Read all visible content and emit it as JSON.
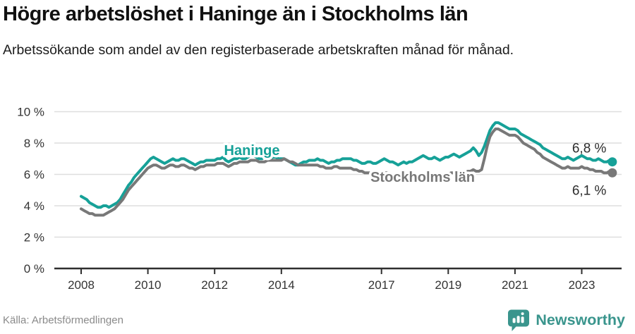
{
  "header": {
    "title": "Högre arbetslöshet i Haninge än i Stockholms län",
    "subtitle": "Arbetssökande som andel av den registerbaserade arbetskraften månad för månad."
  },
  "footer": {
    "source": "Källa: Arbetsförmedlingen",
    "brand": "Newsworthy",
    "brand_icon": "bar-chart-speech-bubble-icon"
  },
  "colors": {
    "haninge_line": "#16a198",
    "stockholm_line": "#787878",
    "grid": "#dedede",
    "axis": "#2f2f2f",
    "tick_text": "#333333",
    "end_label_text": "#2d2d2d",
    "brand_teal": "#3a958d",
    "source_text": "#8a8a8a"
  },
  "chart_data": {
    "type": "line",
    "title": "Högre arbetslöshet i Haninge än i Stockholms län",
    "subtitle": "Arbetssökande som andel av den registerbaserade arbetskraften månad för månad.",
    "unit": "%",
    "x_start_year": 2008,
    "points_per_year": 12,
    "ylim": [
      0,
      10
    ],
    "grid": true,
    "y_ticks": [
      {
        "v": 0,
        "label": "0 %"
      },
      {
        "v": 2,
        "label": "2 %"
      },
      {
        "v": 4,
        "label": "4 %"
      },
      {
        "v": 6,
        "label": "6 %"
      },
      {
        "v": 8,
        "label": "8 %"
      },
      {
        "v": 10,
        "label": "10 %"
      }
    ],
    "x_ticks": [
      {
        "year": 2008,
        "label": "2008"
      },
      {
        "year": 2010,
        "label": "2010"
      },
      {
        "year": 2012,
        "label": "2012"
      },
      {
        "year": 2014,
        "label": "2014"
      },
      {
        "year": 2017,
        "label": "2017"
      },
      {
        "year": 2019,
        "label": "2019"
      },
      {
        "year": 2021,
        "label": "2021"
      },
      {
        "year": 2023,
        "label": "2023"
      }
    ],
    "series": [
      {
        "name": "Haninge",
        "color": "#16a198",
        "end_label": "6,8 %",
        "values": [
          4.6,
          4.5,
          4.4,
          4.2,
          4.1,
          4.0,
          3.9,
          3.9,
          4.0,
          4.0,
          3.9,
          4.0,
          4.1,
          4.2,
          4.4,
          4.7,
          5.0,
          5.3,
          5.5,
          5.8,
          6.0,
          6.2,
          6.4,
          6.6,
          6.8,
          7.0,
          7.1,
          7.0,
          6.9,
          6.8,
          6.7,
          6.8,
          6.9,
          7.0,
          6.9,
          6.9,
          7.0,
          7.0,
          6.9,
          6.8,
          6.7,
          6.6,
          6.7,
          6.8,
          6.8,
          6.9,
          6.9,
          6.9,
          6.9,
          7.0,
          7.0,
          7.1,
          6.9,
          6.8,
          6.9,
          7.0,
          7.0,
          7.1,
          7.0,
          7.0,
          7.1,
          7.2,
          7.2,
          7.1,
          7.0,
          7.0,
          7.1,
          7.1,
          7.0,
          7.1,
          7.1,
          7.0,
          7.0,
          7.0,
          6.9,
          6.8,
          6.7,
          6.6,
          6.6,
          6.7,
          6.8,
          6.8,
          6.9,
          6.9,
          6.9,
          7.0,
          6.9,
          6.9,
          6.8,
          6.7,
          6.8,
          6.8,
          6.9,
          6.9,
          7.0,
          7.0,
          7.0,
          7.0,
          6.9,
          6.9,
          6.8,
          6.7,
          6.7,
          6.8,
          6.8,
          6.7,
          6.7,
          6.8,
          6.9,
          7.0,
          6.9,
          6.8,
          6.8,
          6.7,
          6.6,
          6.7,
          6.8,
          6.7,
          6.8,
          6.8,
          6.9,
          7.0,
          7.1,
          7.2,
          7.1,
          7.0,
          7.0,
          7.1,
          7.0,
          6.9,
          7.0,
          7.1,
          7.1,
          7.2,
          7.3,
          7.2,
          7.1,
          7.2,
          7.3,
          7.4,
          7.5,
          7.7,
          7.5,
          7.2,
          7.4,
          7.8,
          8.3,
          8.8,
          9.1,
          9.3,
          9.3,
          9.2,
          9.1,
          9.0,
          8.9,
          8.9,
          8.9,
          8.8,
          8.6,
          8.5,
          8.4,
          8.3,
          8.2,
          8.1,
          8.0,
          7.9,
          7.7,
          7.6,
          7.5,
          7.4,
          7.3,
          7.2,
          7.1,
          7.0,
          7.0,
          7.1,
          7.0,
          6.9,
          7.0,
          7.1,
          7.2,
          7.1,
          7.0,
          7.0,
          6.9,
          6.9,
          7.0,
          6.9,
          6.8,
          6.8,
          6.9,
          6.8
        ]
      },
      {
        "name": "Stockholms län",
        "color": "#787878",
        "end_label": "6,1 %",
        "values": [
          3.8,
          3.7,
          3.6,
          3.5,
          3.5,
          3.4,
          3.4,
          3.4,
          3.4,
          3.5,
          3.6,
          3.7,
          3.8,
          4.0,
          4.2,
          4.4,
          4.7,
          5.0,
          5.2,
          5.4,
          5.6,
          5.8,
          6.0,
          6.2,
          6.4,
          6.5,
          6.6,
          6.6,
          6.5,
          6.4,
          6.4,
          6.5,
          6.6,
          6.6,
          6.5,
          6.5,
          6.6,
          6.6,
          6.5,
          6.4,
          6.4,
          6.3,
          6.4,
          6.5,
          6.5,
          6.6,
          6.6,
          6.6,
          6.6,
          6.7,
          6.7,
          6.7,
          6.6,
          6.5,
          6.6,
          6.7,
          6.7,
          6.8,
          6.8,
          6.8,
          6.8,
          6.9,
          6.9,
          6.9,
          6.8,
          6.8,
          6.8,
          6.9,
          6.9,
          6.9,
          6.9,
          6.9,
          6.9,
          7.0,
          6.9,
          6.8,
          6.8,
          6.7,
          6.6,
          6.6,
          6.6,
          6.6,
          6.6,
          6.6,
          6.6,
          6.6,
          6.5,
          6.5,
          6.4,
          6.4,
          6.4,
          6.5,
          6.5,
          6.4,
          6.4,
          6.4,
          6.4,
          6.4,
          6.3,
          6.3,
          6.2,
          6.2,
          6.1,
          6.1,
          6.1,
          6.0,
          6.0,
          6.0,
          6.1,
          6.1,
          6.1,
          6.0,
          6.0,
          5.9,
          5.9,
          6.0,
          6.0,
          6.0,
          6.0,
          6.0,
          6.0,
          6.0,
          6.0,
          5.9,
          5.9,
          5.8,
          5.8,
          5.9,
          5.9,
          5.9,
          5.9,
          6.0,
          6.0,
          6.1,
          6.1,
          6.1,
          6.0,
          6.1,
          6.1,
          6.2,
          6.2,
          6.3,
          6.2,
          6.2,
          6.3,
          7.0,
          7.8,
          8.4,
          8.7,
          8.9,
          8.9,
          8.8,
          8.7,
          8.6,
          8.5,
          8.5,
          8.5,
          8.4,
          8.2,
          8.0,
          7.9,
          7.8,
          7.7,
          7.6,
          7.4,
          7.3,
          7.1,
          7.0,
          6.9,
          6.8,
          6.7,
          6.6,
          6.5,
          6.4,
          6.4,
          6.5,
          6.4,
          6.4,
          6.4,
          6.4,
          6.5,
          6.4,
          6.4,
          6.3,
          6.3,
          6.2,
          6.2,
          6.2,
          6.1,
          6.1,
          6.2,
          6.1
        ]
      }
    ]
  }
}
